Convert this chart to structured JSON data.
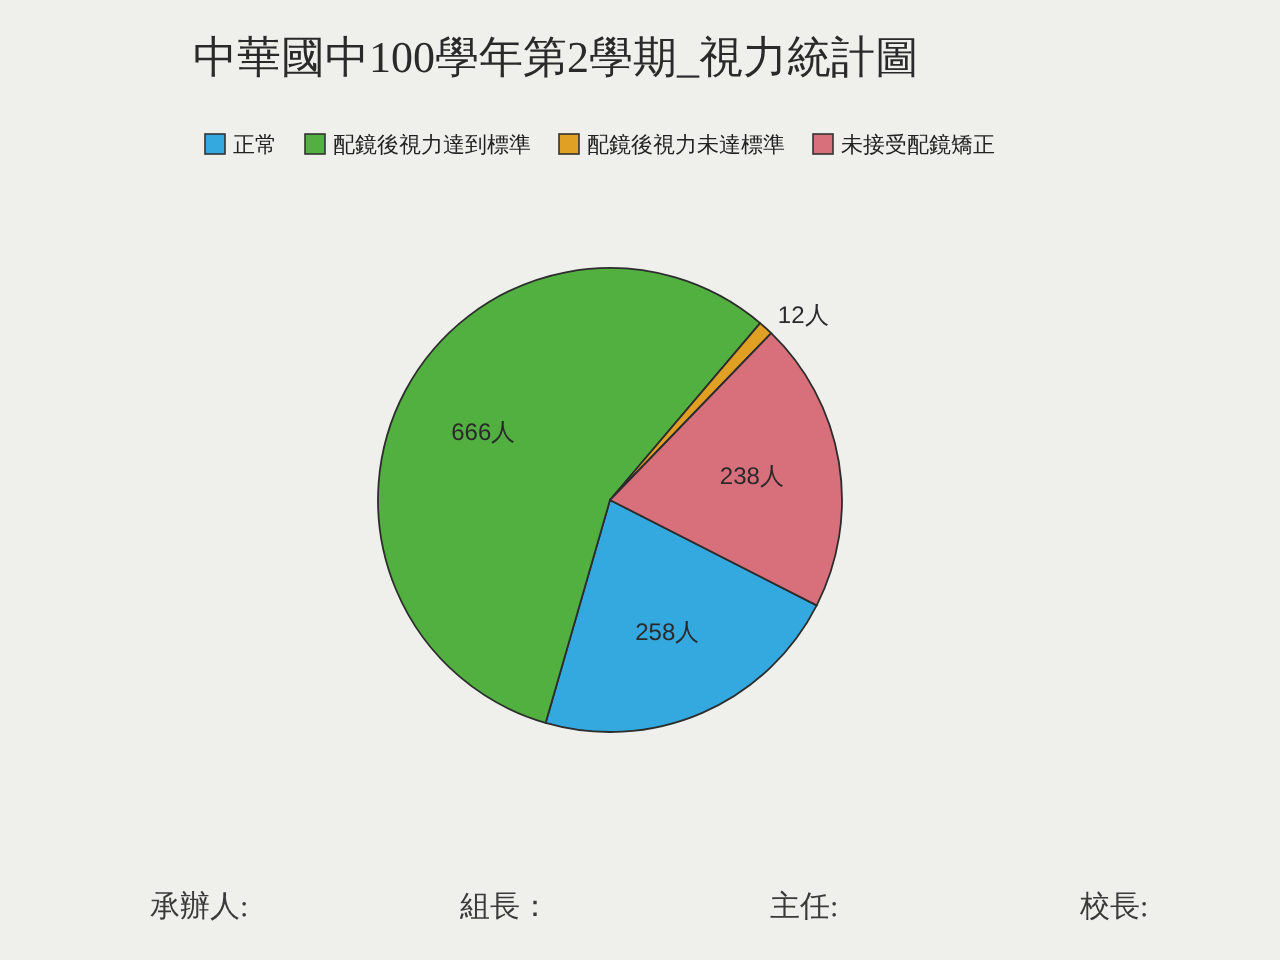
{
  "chart_data": {
    "type": "pie",
    "title": "中華國中100學年第2學期_視力統計圖",
    "categories": [
      "正常",
      "配鏡後視力達到標準",
      "配鏡後視力未達標準",
      "未接受配鏡矯正"
    ],
    "values": [
      258,
      666,
      12,
      238
    ],
    "value_labels": [
      "258人",
      "666人",
      "12人",
      "238人"
    ],
    "colors": [
      "#33a9e0",
      "#52b040",
      "#e0a024",
      "#d8707c"
    ],
    "legend": "top",
    "annotations": [
      "承辦人:",
      "組長：",
      "主任:",
      "校長:"
    ]
  }
}
